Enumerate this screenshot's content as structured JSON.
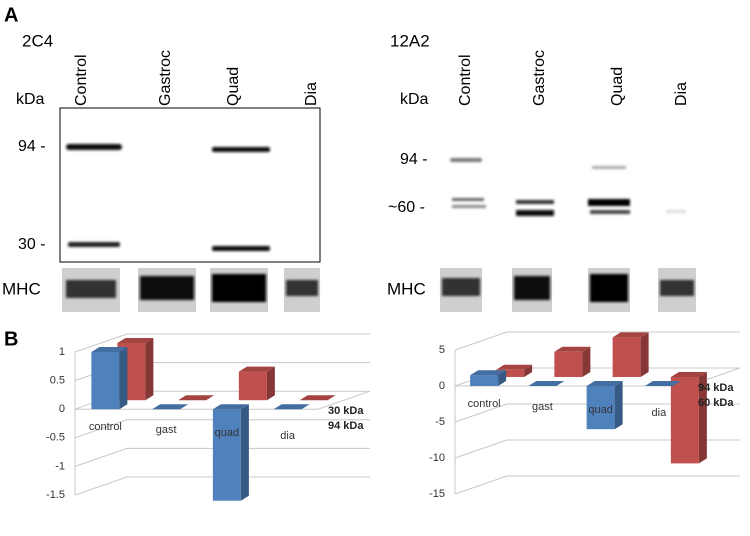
{
  "figure": {
    "panel_a": "A",
    "panel_b": "B",
    "blots": [
      {
        "title": "2C4",
        "unit": "kDa",
        "lanes": [
          "Control",
          "Gastroc",
          "Quad",
          "Dia"
        ],
        "markers": [
          "94 -",
          "30 -"
        ],
        "loading": "MHC"
      },
      {
        "title": "12A2",
        "unit": "kDa",
        "lanes": [
          "Control",
          "Gastroc",
          "Quad",
          "Dia"
        ],
        "markers": [
          "94 -",
          "~60 -"
        ],
        "loading": "MHC"
      }
    ]
  },
  "chart_data": [
    {
      "type": "bar",
      "categories": [
        "control",
        "gast",
        "quad",
        "dia"
      ],
      "series": [
        {
          "name": "30 kDa",
          "color": "#c0504d",
          "values": [
            1.0,
            0,
            0.5,
            0
          ]
        },
        {
          "name": "94 kDa",
          "color": "#4f81bd",
          "values": [
            1.0,
            0,
            -1.6,
            0
          ]
        }
      ],
      "ylim": [
        -1.5,
        1
      ],
      "yticks": [
        -1.5,
        -1,
        -0.5,
        0,
        0.5,
        1
      ],
      "grid": true
    },
    {
      "type": "bar",
      "categories": [
        "control",
        "gast",
        "quad",
        "dia"
      ],
      "series": [
        {
          "name": "94 kDa",
          "color": "#c0504d",
          "values": [
            1,
            3.5,
            5.5,
            -12
          ]
        },
        {
          "name": "60 kDa",
          "color": "#4f81bd",
          "values": [
            1.5,
            0,
            -6,
            0
          ]
        }
      ],
      "ylim": [
        -15,
        5
      ],
      "yticks": [
        -15,
        -10,
        -5,
        0,
        5
      ],
      "grid": true
    }
  ]
}
